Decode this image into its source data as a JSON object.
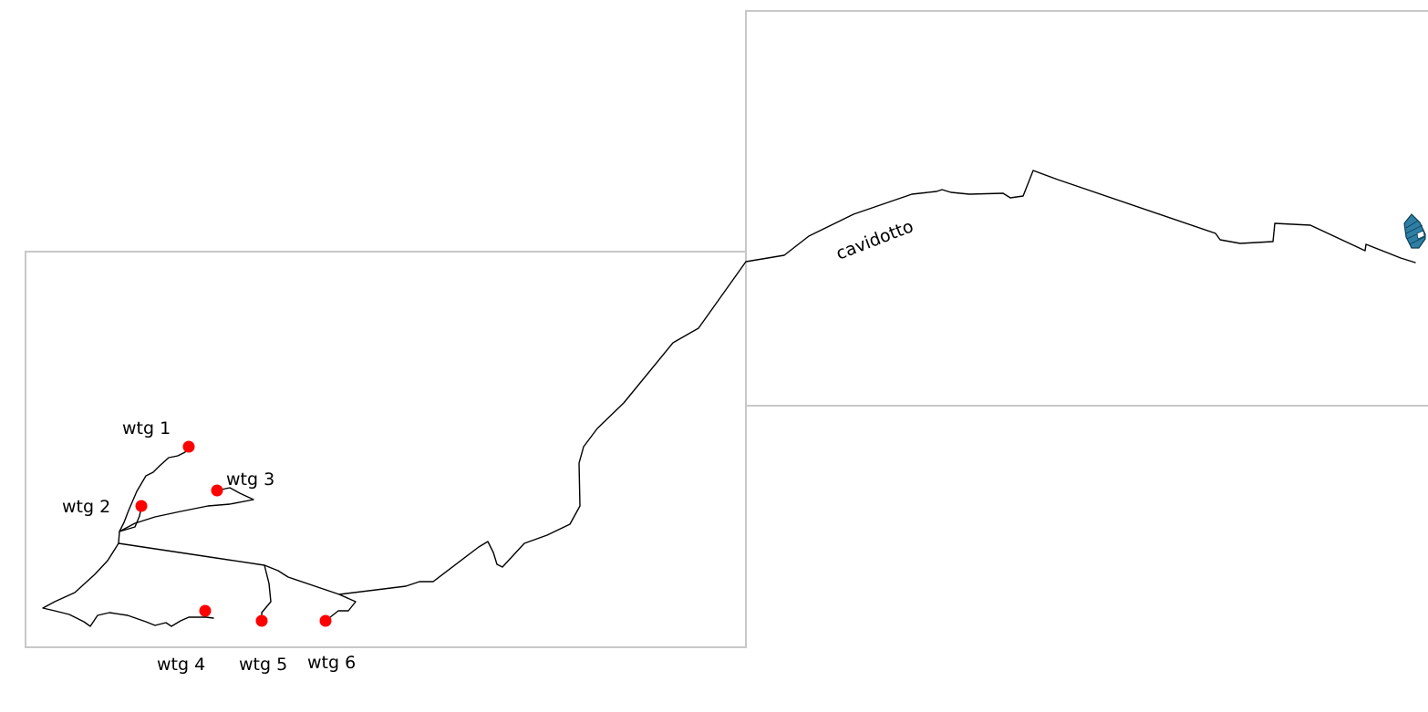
{
  "map": {
    "turbines": [
      {
        "id": "wtg1",
        "label": "wtg 1"
      },
      {
        "id": "wtg2",
        "label": "wtg 2"
      },
      {
        "id": "wtg3",
        "label": "wtg 3"
      },
      {
        "id": "wtg4",
        "label": "wtg 4"
      },
      {
        "id": "wtg5",
        "label": "wtg 5"
      },
      {
        "id": "wtg6",
        "label": "wtg 6"
      }
    ],
    "cable_label": "cavidotto",
    "colors": {
      "turbine": "#ff0000",
      "cable": "#000000",
      "frame": "#c8c8c8",
      "substation": "#2f7fa5"
    }
  }
}
